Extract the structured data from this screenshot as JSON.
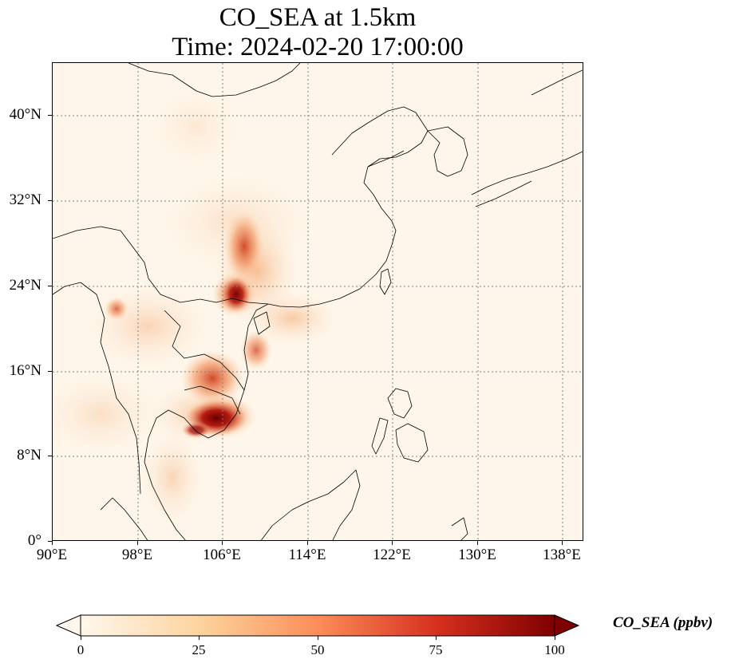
{
  "title_line1": "CO_SEA at 1.5km",
  "title_line2": "Time: 2024-02-20 17:00:00",
  "lat_ticks": [
    "0°",
    "8°N",
    "16°N",
    "24°N",
    "32°N",
    "40°N"
  ],
  "lon_ticks": [
    "90°E",
    "98°E",
    "106°E",
    "114°E",
    "122°E",
    "130°E",
    "138°E"
  ],
  "colorbar": {
    "label": "CO_SEA (ppbv)",
    "ticks": [
      "0",
      "25",
      "50",
      "75",
      "100"
    ],
    "colormap": "OrRd",
    "colors": [
      "#fff7ec",
      "#fdd49e",
      "#fc8d59",
      "#d7301f",
      "#7f0000"
    ],
    "extend": "both"
  },
  "map": {
    "projection": "PlateCarree",
    "lon_range": [
      90,
      140
    ],
    "lat_range": [
      0,
      45
    ],
    "gridlines": "dotted",
    "field": "CO_SEA",
    "level": "1.5km"
  }
}
